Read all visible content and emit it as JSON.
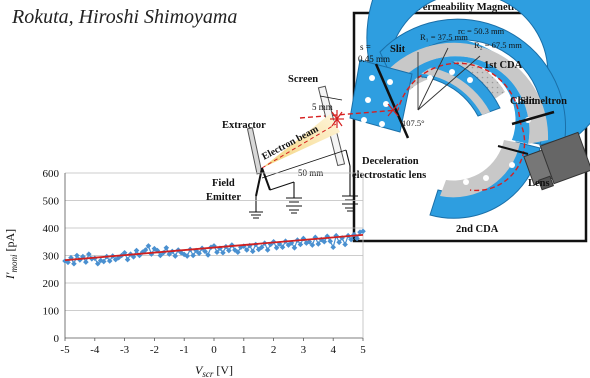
{
  "authors": "Rokuta, Hiroshi Shimoyama",
  "diagram": {
    "shield_label": "High-Permeability Magnetic Shield",
    "screen_label": "Screen",
    "extractor_label": "Extractor",
    "electron_beam_label": "Electron beam",
    "field_emitter_label_1": "Field",
    "field_emitter_label_2": "Emitter",
    "dim_5mm": "5 mm",
    "dim_50mm": "50 mm",
    "gap_label_1": "s =",
    "gap_label_2": "0.45 mm",
    "slit_left": "Slit",
    "slit_right": "Slit",
    "r1": "R₁ = 37.5 mm",
    "rc": "rᴄ = 50.3 mm",
    "r2": "R₂ = 67.5 mm",
    "angle": "107.5°",
    "cda1": "1st CDA",
    "cda2": "2nd CDA",
    "channeltron": "Channeltron",
    "lens": "Lens",
    "decel_1": "Deceleration",
    "decel_2": "electrostatic lens"
  },
  "chart_data": {
    "type": "line",
    "xlabel": "V",
    "xlabel_sub": "scr",
    "xlabel_unit": "[V]",
    "ylabel": "I'",
    "ylabel_sub": "moni",
    "ylabel_unit": "[pA]",
    "xlim": [
      -5,
      5
    ],
    "ylim": [
      0,
      600
    ],
    "xticks": [
      -5,
      -4,
      -3,
      -2,
      -1,
      0,
      1,
      2,
      3,
      4,
      5
    ],
    "yticks": [
      0,
      100,
      200,
      300,
      400,
      500,
      600
    ],
    "grid": true,
    "series": [
      {
        "color": "#4a90d0",
        "marker": "diamond",
        "x": [
          -5.0,
          -4.9,
          -4.8,
          -4.7,
          -4.6,
          -4.5,
          -4.4,
          -4.3,
          -4.2,
          -4.1,
          -4.0,
          -3.9,
          -3.8,
          -3.7,
          -3.6,
          -3.5,
          -3.4,
          -3.3,
          -3.2,
          -3.1,
          -3.0,
          -2.9,
          -2.8,
          -2.7,
          -2.6,
          -2.5,
          -2.4,
          -2.3,
          -2.2,
          -2.1,
          -2.0,
          -1.9,
          -1.8,
          -1.7,
          -1.6,
          -1.5,
          -1.4,
          -1.3,
          -1.2,
          -1.1,
          -1.0,
          -0.9,
          -0.8,
          -0.7,
          -0.6,
          -0.5,
          -0.4,
          -0.3,
          -0.2,
          -0.1,
          0.0,
          0.1,
          0.2,
          0.3,
          0.4,
          0.5,
          0.6,
          0.7,
          0.8,
          0.9,
          1.0,
          1.1,
          1.2,
          1.3,
          1.4,
          1.5,
          1.6,
          1.7,
          1.8,
          1.9,
          2.0,
          2.1,
          2.2,
          2.3,
          2.4,
          2.5,
          2.6,
          2.7,
          2.8,
          2.9,
          3.0,
          3.1,
          3.2,
          3.3,
          3.4,
          3.5,
          3.6,
          3.7,
          3.8,
          3.9,
          4.0,
          4.1,
          4.2,
          4.3,
          4.4,
          4.5,
          4.6,
          4.7,
          4.8,
          4.9,
          5.0
        ],
        "y": [
          280,
          275,
          292,
          270,
          300,
          284,
          296,
          276,
          305,
          288,
          290,
          270,
          282,
          278,
          296,
          280,
          298,
          285,
          292,
          300,
          310,
          285,
          305,
          295,
          318,
          300,
          312,
          320,
          335,
          305,
          325,
          318,
          300,
          310,
          328,
          305,
          315,
          298,
          320,
          310,
          304,
          298,
          322,
          300,
          318,
          308,
          326,
          315,
          302,
          330,
          335,
          312,
          326,
          310,
          332,
          318,
          338,
          320,
          312,
          330,
          334,
          320,
          336,
          315,
          340,
          322,
          330,
          345,
          320,
          340,
          350,
          328,
          342,
          330,
          352,
          338,
          346,
          328,
          356,
          340,
          362,
          345,
          350,
          338,
          366,
          342,
          358,
          350,
          370,
          352,
          330,
          372,
          348,
          364,
          340,
          372,
          358,
          376,
          362,
          385,
          388
        ]
      },
      {
        "color": "#d02020",
        "marker": "none",
        "x": [
          -5,
          5
        ],
        "y": [
          283,
          375
        ]
      }
    ]
  }
}
